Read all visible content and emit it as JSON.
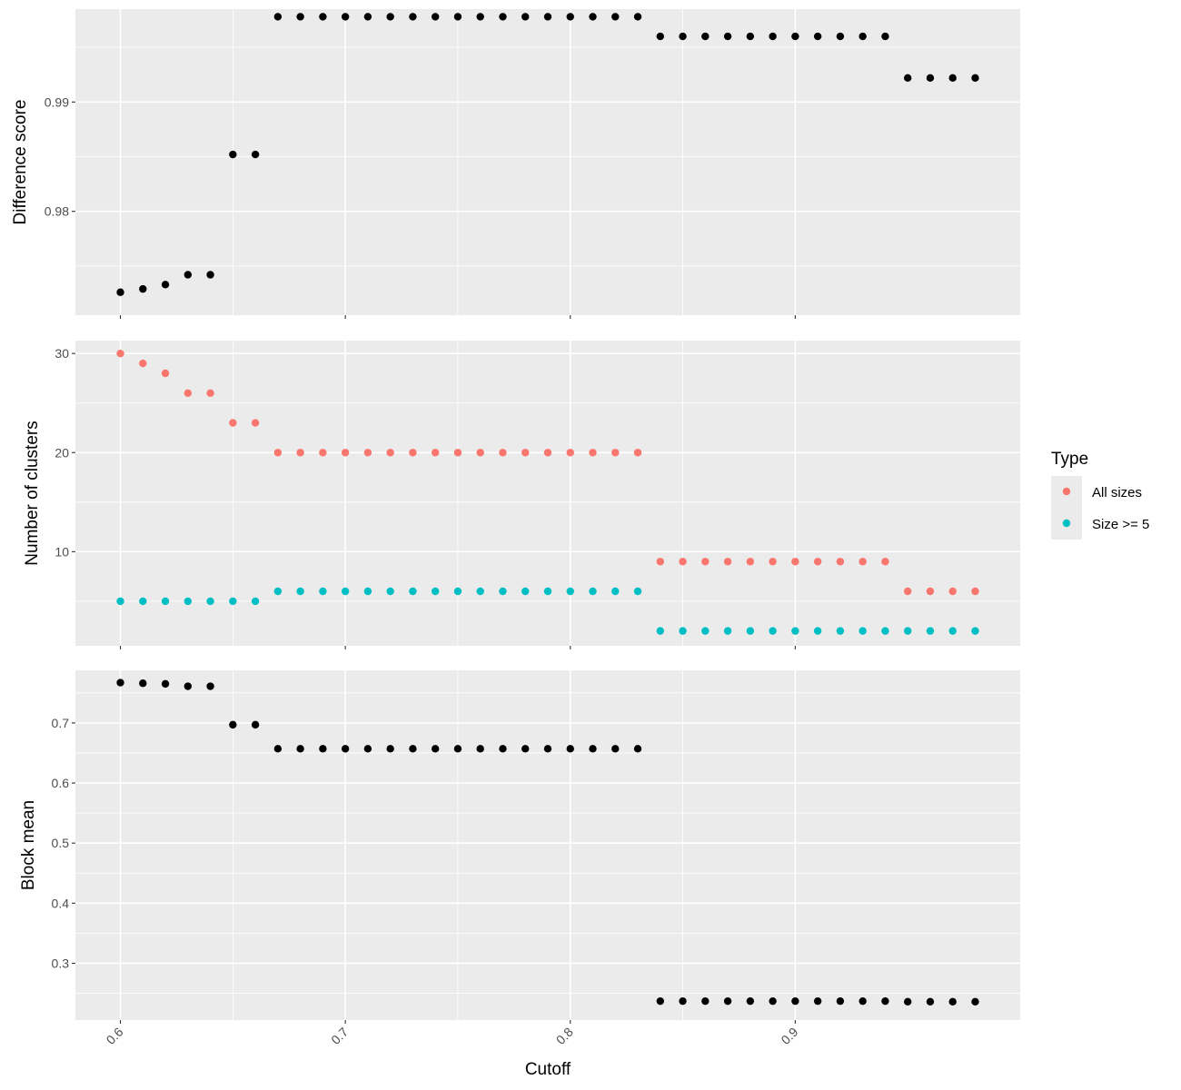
{
  "chart_data": {
    "type": "scatter",
    "x": [
      0.6,
      0.61,
      0.62,
      0.63,
      0.64,
      0.65,
      0.66,
      0.67,
      0.68,
      0.69,
      0.7,
      0.71,
      0.72,
      0.73,
      0.74,
      0.75,
      0.76,
      0.77,
      0.78,
      0.79,
      0.8,
      0.81,
      0.82,
      0.83,
      0.84,
      0.85,
      0.86,
      0.87,
      0.88,
      0.89,
      0.9,
      0.91,
      0.92,
      0.93,
      0.94,
      0.95,
      0.96,
      0.97,
      0.98
    ],
    "xlabel": "Cutoff",
    "xlim": [
      0.58,
      1.0
    ],
    "xticks": [
      0.6,
      0.7,
      0.8,
      0.9
    ],
    "xtick_labels": [
      "0.6",
      "0.7",
      "0.8",
      "0.9"
    ],
    "panels": [
      {
        "ylabel": "Difference score",
        "ylim": [
          0.9705,
          0.9985
        ],
        "yticks": [
          0.98,
          0.99
        ],
        "ytick_labels": [
          "0.98",
          "0.99"
        ],
        "series": [
          {
            "color": "#000000",
            "values": [
              0.9726,
              0.9729,
              0.9733,
              0.9742,
              0.9742,
              0.9852,
              0.9852,
              0.9978,
              0.9978,
              0.9978,
              0.9978,
              0.9978,
              0.9978,
              0.9978,
              0.9978,
              0.9978,
              0.9978,
              0.9978,
              0.9978,
              0.9978,
              0.9978,
              0.9978,
              0.9978,
              0.9978,
              0.996,
              0.996,
              0.996,
              0.996,
              0.996,
              0.996,
              0.996,
              0.996,
              0.996,
              0.996,
              0.996,
              0.9922,
              0.9922,
              0.9922,
              0.9922
            ]
          }
        ]
      },
      {
        "ylabel": "Number of clusters",
        "ylim": [
          0.5,
          31.3
        ],
        "yticks": [
          10,
          20,
          30
        ],
        "ytick_labels": [
          "10",
          "20",
          "30"
        ],
        "series": [
          {
            "name": "All sizes",
            "color": "#F8766D",
            "values": [
              30,
              29,
              28,
              26,
              26,
              23,
              23,
              20,
              20,
              20,
              20,
              20,
              20,
              20,
              20,
              20,
              20,
              20,
              20,
              20,
              20,
              20,
              20,
              20,
              9,
              9,
              9,
              9,
              9,
              9,
              9,
              9,
              9,
              9,
              9,
              6,
              6,
              6,
              6
            ]
          },
          {
            "name": "Size >= 5",
            "color": "#00BFC4",
            "values": [
              5,
              5,
              5,
              5,
              5,
              5,
              5,
              6,
              6,
              6,
              6,
              6,
              6,
              6,
              6,
              6,
              6,
              6,
              6,
              6,
              6,
              6,
              6,
              6,
              2,
              2,
              2,
              2,
              2,
              2,
              2,
              2,
              2,
              2,
              2,
              2,
              2,
              2,
              2
            ]
          }
        ]
      },
      {
        "ylabel": "Block mean",
        "ylim": [
          0.2055,
          0.7875
        ],
        "yticks": [
          0.3,
          0.4,
          0.5,
          0.6,
          0.7
        ],
        "ytick_labels": [
          "0.3",
          "0.4",
          "0.5",
          "0.6",
          "0.7"
        ],
        "series": [
          {
            "color": "#000000",
            "values": [
              0.767,
              0.766,
              0.765,
              0.761,
              0.761,
              0.697,
              0.697,
              0.657,
              0.657,
              0.657,
              0.657,
              0.657,
              0.657,
              0.657,
              0.657,
              0.657,
              0.657,
              0.657,
              0.657,
              0.657,
              0.657,
              0.657,
              0.657,
              0.657,
              0.237,
              0.237,
              0.237,
              0.237,
              0.237,
              0.237,
              0.237,
              0.237,
              0.237,
              0.237,
              0.237,
              0.236,
              0.236,
              0.236,
              0.236
            ]
          }
        ]
      }
    ],
    "legend": {
      "title": "Type",
      "position": "right",
      "entries": [
        {
          "label": "All sizes",
          "color": "#F8766D"
        },
        {
          "label": "Size >= 5",
          "color": "#00BFC4"
        }
      ]
    },
    "grid": true,
    "panel_background": "#EBEBEB",
    "gridline_color": "#FFFFFF"
  }
}
